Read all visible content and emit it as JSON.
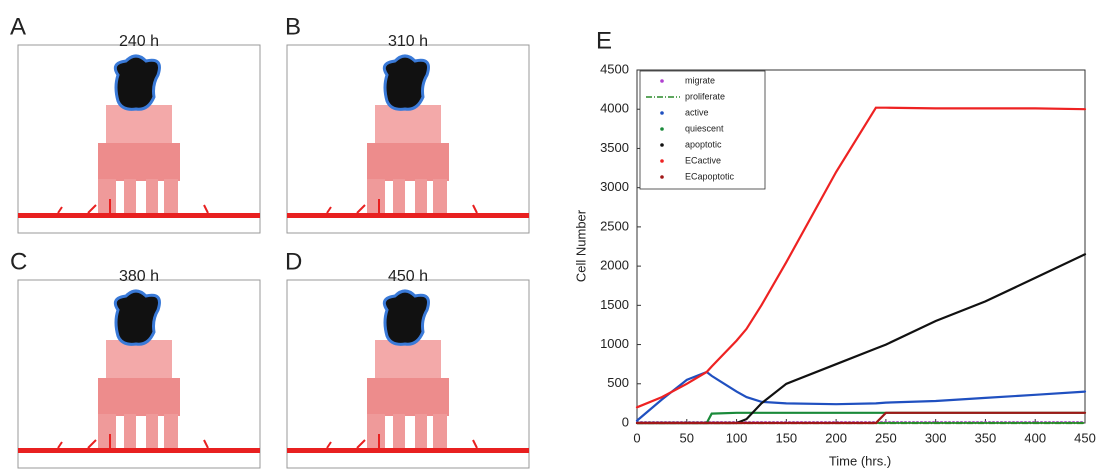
{
  "panels": [
    {
      "label": "A",
      "title": "240 h"
    },
    {
      "label": "B",
      "title": "310 h"
    },
    {
      "label": "C",
      "title": "380 h"
    },
    {
      "label": "D",
      "title": "450 h"
    }
  ],
  "chart_data": {
    "type": "line",
    "label": "E",
    "x_label": "Time (hrs.)",
    "y_label": "Cell Number",
    "x": [
      0,
      25,
      50,
      70,
      75,
      100,
      110,
      125,
      150,
      200,
      240,
      250,
      300,
      350,
      400,
      450
    ],
    "series": [
      {
        "name": "migrate",
        "color": "#b040d0",
        "style": "dotted",
        "values": [
          10,
          10,
          10,
          10,
          10,
          10,
          10,
          10,
          10,
          10,
          10,
          10,
          10,
          10,
          10,
          10
        ]
      },
      {
        "name": "proliferate",
        "color": "#2a8a2a",
        "style": "dash-dot",
        "values": [
          0,
          0,
          0,
          0,
          0,
          0,
          0,
          0,
          0,
          0,
          0,
          0,
          0,
          0,
          0,
          0
        ]
      },
      {
        "name": "active",
        "color": "#2050c0",
        "style": "solid",
        "values": [
          30,
          300,
          550,
          650,
          600,
          400,
          330,
          270,
          250,
          240,
          250,
          260,
          280,
          320,
          360,
          400
        ]
      },
      {
        "name": "quiescent",
        "color": "#1a8a3a",
        "style": "solid",
        "values": [
          0,
          0,
          0,
          0,
          120,
          130,
          130,
          130,
          130,
          130,
          130,
          130,
          130,
          130,
          130,
          130
        ]
      },
      {
        "name": "apoptotic",
        "color": "#111111",
        "style": "solid",
        "values": [
          0,
          0,
          0,
          0,
          0,
          0,
          50,
          250,
          500,
          750,
          950,
          1000,
          1300,
          1550,
          1850,
          2150
        ]
      },
      {
        "name": "ECactive",
        "color": "#ee2222",
        "style": "solid",
        "values": [
          200,
          330,
          500,
          650,
          720,
          1050,
          1200,
          1500,
          2050,
          3200,
          4020,
          4020,
          4010,
          4010,
          4010,
          4000
        ]
      },
      {
        "name": "ECapoptotic",
        "color": "#a01818",
        "style": "solid",
        "values": [
          0,
          0,
          0,
          0,
          0,
          0,
          0,
          0,
          0,
          0,
          0,
          130,
          130,
          130,
          130,
          130
        ]
      }
    ],
    "xlim": [
      0,
      450
    ],
    "xticks": [
      0,
      50,
      100,
      150,
      200,
      250,
      300,
      350,
      400,
      450
    ],
    "ylim": [
      0,
      4500
    ],
    "yticks": [
      0,
      500,
      1000,
      1500,
      2000,
      2500,
      3000,
      3500,
      4000,
      4500
    ],
    "legend": "upper-left"
  }
}
